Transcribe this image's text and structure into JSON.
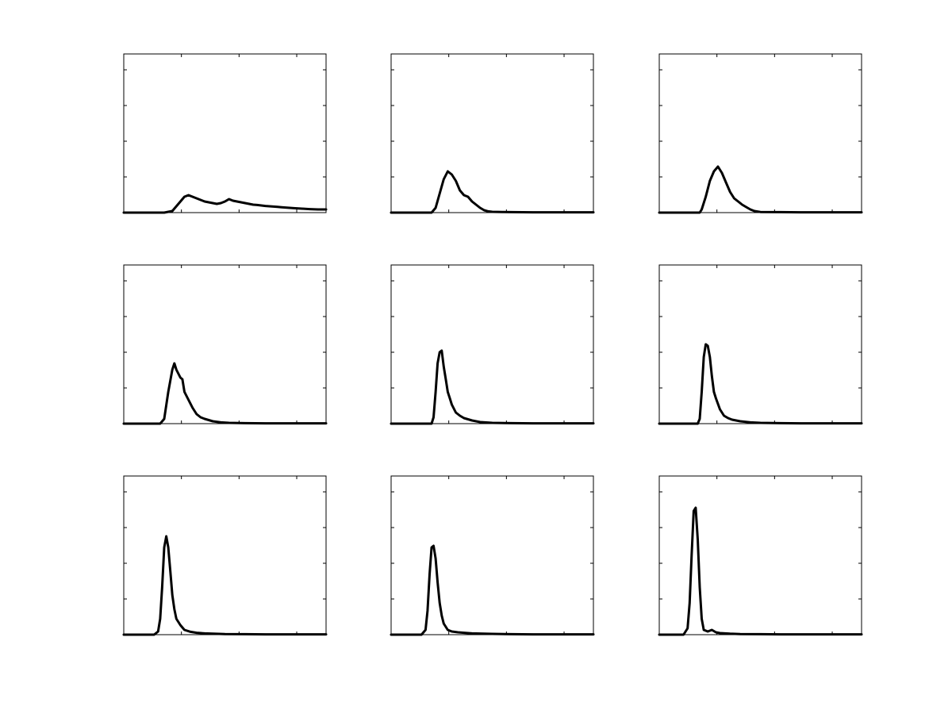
{
  "chart_data": [
    {
      "type": "line",
      "xlim": [
        0,
        1
      ],
      "ylim": [
        0,
        1
      ],
      "grid": false,
      "title": "",
      "xlabel": "",
      "ylabel": "",
      "x": [
        0,
        0.2,
        0.24,
        0.26,
        0.28,
        0.3,
        0.32,
        0.34,
        0.36,
        0.38,
        0.4,
        0.42,
        0.44,
        0.46,
        0.48,
        0.5,
        0.52,
        0.54,
        0.56,
        0.58,
        0.6,
        0.62,
        0.64,
        0.66,
        0.68,
        0.7,
        0.72,
        0.74,
        0.76,
        0.78,
        0.8,
        0.84,
        0.88,
        0.92,
        0.96,
        1.0
      ],
      "y": [
        0,
        0,
        0.01,
        0.04,
        0.07,
        0.1,
        0.11,
        0.1,
        0.09,
        0.08,
        0.07,
        0.065,
        0.06,
        0.055,
        0.06,
        0.07,
        0.085,
        0.075,
        0.07,
        0.065,
        0.06,
        0.055,
        0.05,
        0.048,
        0.045,
        0.042,
        0.04,
        0.038,
        0.036,
        0.034,
        0.032,
        0.028,
        0.025,
        0.022,
        0.02,
        0.02
      ]
    },
    {
      "type": "line",
      "xlim": [
        0,
        1
      ],
      "ylim": [
        0,
        1
      ],
      "grid": false,
      "title": "",
      "xlabel": "",
      "ylabel": "",
      "x": [
        0,
        0.2,
        0.22,
        0.24,
        0.26,
        0.28,
        0.3,
        0.32,
        0.34,
        0.36,
        0.38,
        0.4,
        0.42,
        0.44,
        0.46,
        0.48,
        0.5,
        0.55,
        0.6,
        0.7,
        0.8,
        0.9,
        1.0
      ],
      "y": [
        0,
        0,
        0.03,
        0.12,
        0.21,
        0.26,
        0.24,
        0.2,
        0.14,
        0.11,
        0.1,
        0.07,
        0.05,
        0.03,
        0.015,
        0.008,
        0.005,
        0.004,
        0.003,
        0.002,
        0.002,
        0.002,
        0.002
      ]
    },
    {
      "type": "line",
      "xlim": [
        0,
        1
      ],
      "ylim": [
        0,
        1
      ],
      "grid": false,
      "title": "",
      "xlabel": "",
      "ylabel": "",
      "x": [
        0,
        0.2,
        0.21,
        0.23,
        0.25,
        0.27,
        0.29,
        0.31,
        0.33,
        0.35,
        0.37,
        0.39,
        0.41,
        0.43,
        0.45,
        0.47,
        0.5,
        0.6,
        0.7,
        0.8,
        0.9,
        1.0
      ],
      "y": [
        0,
        0,
        0.02,
        0.1,
        0.2,
        0.26,
        0.29,
        0.25,
        0.19,
        0.13,
        0.09,
        0.07,
        0.05,
        0.035,
        0.02,
        0.01,
        0.004,
        0.003,
        0.002,
        0.002,
        0.002,
        0.002
      ]
    },
    {
      "type": "line",
      "xlim": [
        0,
        1
      ],
      "ylim": [
        0,
        1
      ],
      "grid": false,
      "title": "",
      "xlabel": "",
      "ylabel": "",
      "x": [
        0,
        0.18,
        0.2,
        0.22,
        0.24,
        0.25,
        0.26,
        0.28,
        0.29,
        0.3,
        0.32,
        0.34,
        0.36,
        0.38,
        0.4,
        0.44,
        0.48,
        0.52,
        0.6,
        0.7,
        0.8,
        0.9,
        1.0
      ],
      "y": [
        0,
        0,
        0.03,
        0.2,
        0.34,
        0.38,
        0.34,
        0.29,
        0.28,
        0.2,
        0.15,
        0.1,
        0.06,
        0.04,
        0.03,
        0.015,
        0.008,
        0.005,
        0.003,
        0.002,
        0.002,
        0.002,
        0.002
      ]
    },
    {
      "type": "line",
      "xlim": [
        0,
        1
      ],
      "ylim": [
        0,
        1
      ],
      "grid": false,
      "title": "",
      "xlabel": "",
      "ylabel": "",
      "x": [
        0,
        0.2,
        0.21,
        0.22,
        0.23,
        0.24,
        0.25,
        0.26,
        0.27,
        0.28,
        0.29,
        0.3,
        0.32,
        0.34,
        0.36,
        0.4,
        0.44,
        0.5,
        0.6,
        0.7,
        0.8,
        0.9,
        1.0
      ],
      "y": [
        0,
        0,
        0.04,
        0.2,
        0.38,
        0.45,
        0.46,
        0.36,
        0.28,
        0.2,
        0.16,
        0.12,
        0.07,
        0.05,
        0.035,
        0.02,
        0.01,
        0.005,
        0.003,
        0.002,
        0.002,
        0.002,
        0.002
      ]
    },
    {
      "type": "line",
      "xlim": [
        0,
        1
      ],
      "ylim": [
        0,
        1
      ],
      "grid": false,
      "title": "",
      "xlabel": "",
      "ylabel": "",
      "x": [
        0,
        0.19,
        0.2,
        0.21,
        0.22,
        0.23,
        0.24,
        0.25,
        0.26,
        0.27,
        0.28,
        0.3,
        0.32,
        0.34,
        0.36,
        0.4,
        0.45,
        0.5,
        0.6,
        0.7,
        0.8,
        0.9,
        1.0
      ],
      "y": [
        0,
        0,
        0.03,
        0.2,
        0.42,
        0.5,
        0.49,
        0.42,
        0.3,
        0.2,
        0.16,
        0.09,
        0.05,
        0.035,
        0.025,
        0.015,
        0.008,
        0.005,
        0.003,
        0.002,
        0.002,
        0.002,
        0.002
      ]
    },
    {
      "type": "line",
      "xlim": [
        0,
        1
      ],
      "ylim": [
        0,
        1
      ],
      "grid": false,
      "title": "",
      "xlabel": "",
      "ylabel": "",
      "x": [
        0,
        0.15,
        0.17,
        0.18,
        0.19,
        0.2,
        0.21,
        0.22,
        0.23,
        0.24,
        0.25,
        0.26,
        0.28,
        0.3,
        0.33,
        0.36,
        0.4,
        0.5,
        0.6,
        0.7,
        0.8,
        0.9,
        1.0
      ],
      "y": [
        0,
        0,
        0.02,
        0.1,
        0.3,
        0.55,
        0.62,
        0.55,
        0.4,
        0.25,
        0.16,
        0.1,
        0.06,
        0.03,
        0.018,
        0.012,
        0.008,
        0.004,
        0.003,
        0.002,
        0.002,
        0.002,
        0.002
      ]
    },
    {
      "type": "line",
      "xlim": [
        0,
        1
      ],
      "ylim": [
        0,
        1
      ],
      "grid": false,
      "title": "",
      "xlabel": "",
      "ylabel": "",
      "x": [
        0,
        0.15,
        0.17,
        0.18,
        0.19,
        0.2,
        0.21,
        0.22,
        0.23,
        0.24,
        0.25,
        0.26,
        0.28,
        0.3,
        0.33,
        0.36,
        0.4,
        0.5,
        0.6,
        0.7,
        0.8,
        0.9,
        1.0
      ],
      "y": [
        0,
        0,
        0.03,
        0.15,
        0.38,
        0.55,
        0.56,
        0.48,
        0.33,
        0.2,
        0.12,
        0.07,
        0.03,
        0.02,
        0.015,
        0.012,
        0.008,
        0.005,
        0.003,
        0.002,
        0.002,
        0.002,
        0.002
      ]
    },
    {
      "type": "line",
      "xlim": [
        0,
        1
      ],
      "ylim": [
        0,
        1
      ],
      "grid": false,
      "title": "",
      "xlabel": "",
      "ylabel": "",
      "x": [
        0,
        0.12,
        0.14,
        0.15,
        0.16,
        0.17,
        0.18,
        0.19,
        0.2,
        0.21,
        0.22,
        0.24,
        0.26,
        0.28,
        0.3,
        0.35,
        0.4,
        0.5,
        0.6,
        0.7,
        0.8,
        0.9,
        1.0
      ],
      "y": [
        0,
        0,
        0.04,
        0.2,
        0.5,
        0.78,
        0.8,
        0.6,
        0.3,
        0.1,
        0.03,
        0.02,
        0.03,
        0.015,
        0.01,
        0.006,
        0.004,
        0.003,
        0.002,
        0.002,
        0.002,
        0.002,
        0.002
      ]
    }
  ]
}
